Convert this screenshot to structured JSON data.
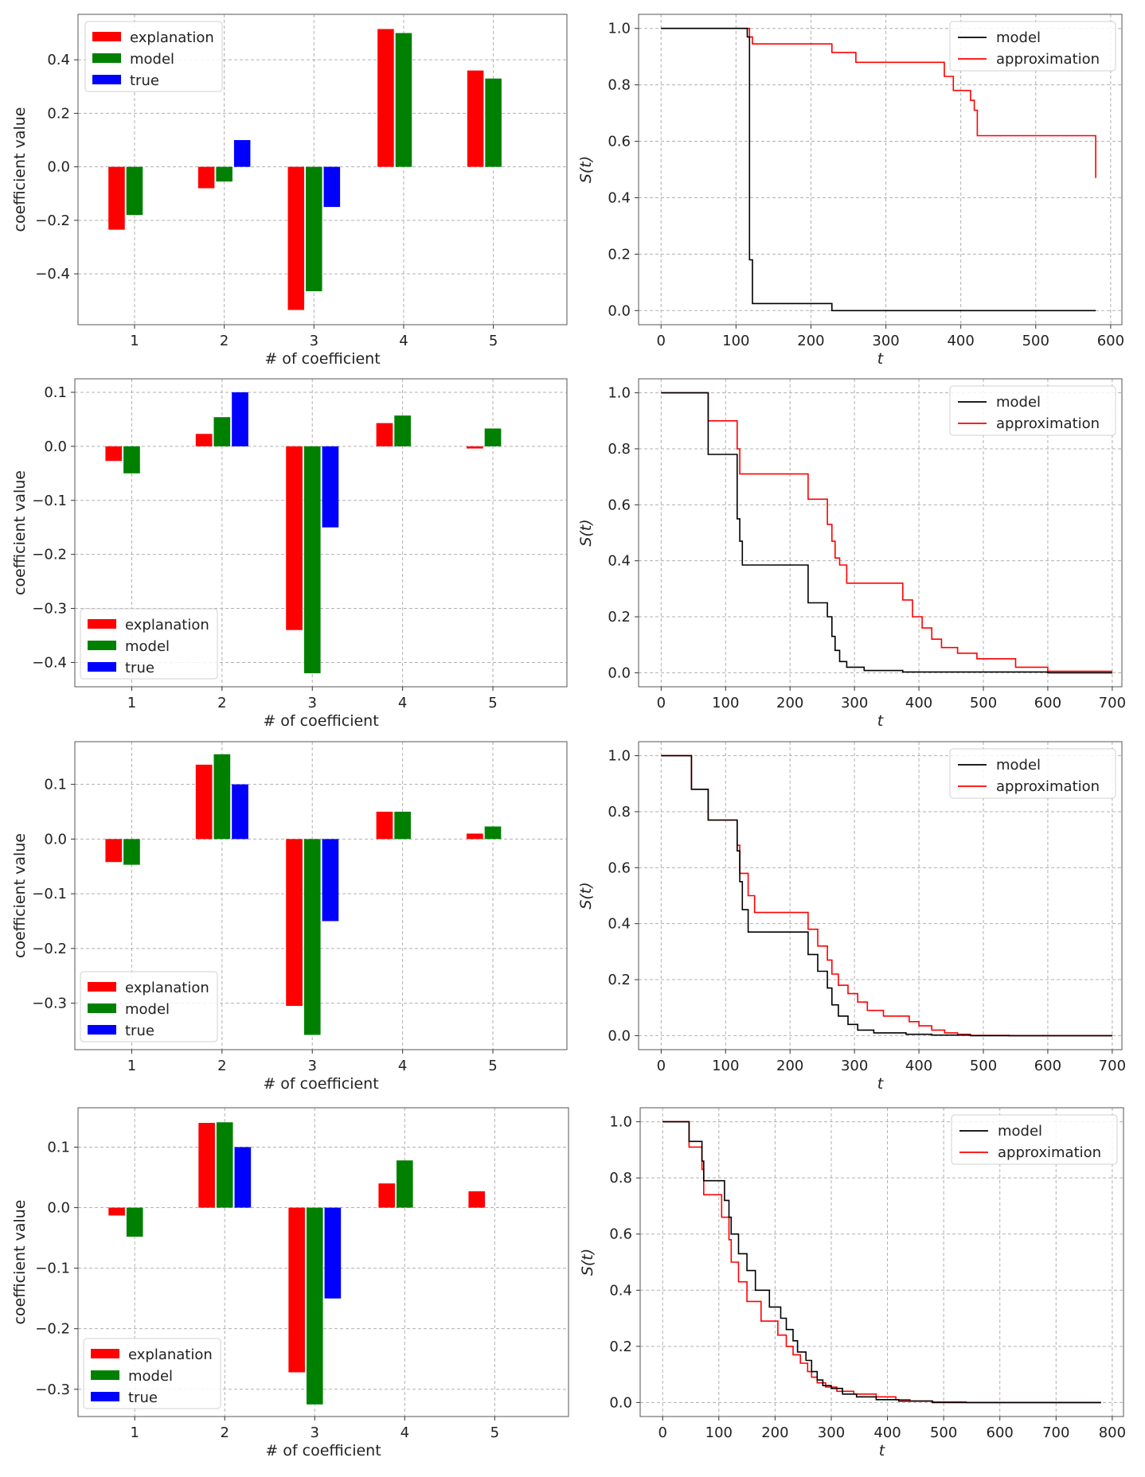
{
  "colors": {
    "explanation": "#ff0000",
    "model_bar": "#008000",
    "true": "#0000ff",
    "model_line": "#000000",
    "approximation": "#ff0000",
    "grid": "#b0b0b0"
  },
  "chart_data": [
    {
      "type": "bar",
      "row": 1,
      "xlabel": "# of coefficient",
      "ylabel": "coefficient value",
      "categories": [
        "1",
        "2",
        "3",
        "4",
        "5"
      ],
      "ylim": [
        -0.59,
        0.57
      ],
      "yticks": [
        -0.4,
        -0.2,
        0.0,
        0.2,
        0.4
      ],
      "yticklabels": [
        "−0.4",
        "−0.2",
        "0.0",
        "0.2",
        "0.4"
      ],
      "grid": true,
      "legend_position": "upper-left",
      "series": [
        {
          "name": "explanation",
          "values": [
            -0.235,
            -0.08,
            -0.535,
            0.515,
            0.36
          ]
        },
        {
          "name": "model",
          "values": [
            -0.18,
            -0.055,
            -0.465,
            0.5,
            0.33
          ]
        },
        {
          "name": "true",
          "values": [
            0,
            0.1,
            -0.15,
            0,
            0
          ]
        }
      ]
    },
    {
      "type": "line",
      "row": 1,
      "xlabel": "t",
      "ylabel": "S(t)",
      "xlim": [
        -30,
        615
      ],
      "ylim": [
        -0.05,
        1.05
      ],
      "xticks": [
        0,
        100,
        200,
        300,
        400,
        500,
        600
      ],
      "yticks": [
        0.0,
        0.2,
        0.4,
        0.6,
        0.8,
        1.0
      ],
      "grid": true,
      "legend_position": "upper-right",
      "series": [
        {
          "name": "model",
          "x": [
            0,
            115,
            115,
            118,
            118,
            122,
            122,
            228,
            228,
            580
          ],
          "y": [
            1.0,
            1.0,
            0.97,
            0.97,
            0.18,
            0.18,
            0.025,
            0.025,
            0.0,
            0.0
          ]
        },
        {
          "name": "approximation",
          "x": [
            0,
            118,
            118,
            122,
            122,
            228,
            228,
            260,
            260,
            378,
            378,
            390,
            390,
            413,
            413,
            418,
            418,
            422,
            422,
            580,
            580
          ],
          "y": [
            1.0,
            1.0,
            0.97,
            0.97,
            0.945,
            0.945,
            0.915,
            0.915,
            0.88,
            0.88,
            0.83,
            0.83,
            0.78,
            0.78,
            0.745,
            0.745,
            0.71,
            0.71,
            0.62,
            0.62,
            0.47
          ]
        }
      ]
    },
    {
      "type": "bar",
      "row": 2,
      "xlabel": "# of coefficient",
      "ylabel": "coefficient value",
      "categories": [
        "1",
        "2",
        "3",
        "4",
        "5"
      ],
      "ylim": [
        -0.445,
        0.125
      ],
      "yticks": [
        -0.4,
        -0.3,
        -0.2,
        -0.1,
        0.0,
        0.1
      ],
      "yticklabels": [
        "−0.4",
        "−0.3",
        "−0.2",
        "−0.1",
        "0.0",
        "0.1"
      ],
      "grid": true,
      "legend_position": "lower-left",
      "series": [
        {
          "name": "explanation",
          "values": [
            -0.027,
            0.023,
            -0.34,
            0.043,
            -0.004
          ]
        },
        {
          "name": "model",
          "values": [
            -0.05,
            0.054,
            -0.42,
            0.057,
            0.033
          ]
        },
        {
          "name": "true",
          "values": [
            0,
            0.1,
            -0.15,
            0,
            0
          ]
        }
      ]
    },
    {
      "type": "line",
      "row": 2,
      "xlabel": "t",
      "ylabel": "S(t)",
      "xlim": [
        -35,
        715
      ],
      "ylim": [
        -0.05,
        1.05
      ],
      "xticks": [
        0,
        100,
        200,
        300,
        400,
        500,
        600,
        700
      ],
      "yticks": [
        0.0,
        0.2,
        0.4,
        0.6,
        0.8,
        1.0
      ],
      "grid": true,
      "legend_position": "upper-right",
      "series": [
        {
          "name": "model",
          "x": [
            0,
            73,
            73,
            118,
            118,
            122,
            122,
            126,
            126,
            228,
            228,
            258,
            258,
            265,
            265,
            270,
            270,
            277,
            277,
            288,
            288,
            315,
            315,
            375,
            375,
            600,
            600,
            700
          ],
          "y": [
            1.0,
            1.0,
            0.78,
            0.78,
            0.55,
            0.55,
            0.47,
            0.47,
            0.385,
            0.385,
            0.25,
            0.25,
            0.2,
            0.2,
            0.13,
            0.13,
            0.08,
            0.08,
            0.04,
            0.04,
            0.02,
            0.02,
            0.008,
            0.008,
            0.003,
            0.003,
            0.0,
            0.0
          ]
        },
        {
          "name": "approximation",
          "x": [
            0,
            73,
            73,
            118,
            118,
            122,
            122,
            228,
            228,
            258,
            258,
            265,
            265,
            270,
            270,
            277,
            277,
            288,
            288,
            315,
            315,
            375,
            375,
            390,
            390,
            405,
            405,
            420,
            420,
            435,
            435,
            460,
            460,
            490,
            490,
            550,
            550,
            600,
            600,
            700
          ],
          "y": [
            1.0,
            1.0,
            0.9,
            0.9,
            0.8,
            0.8,
            0.71,
            0.71,
            0.62,
            0.62,
            0.53,
            0.53,
            0.47,
            0.47,
            0.41,
            0.41,
            0.385,
            0.385,
            0.32,
            0.32,
            0.32,
            0.32,
            0.26,
            0.26,
            0.2,
            0.2,
            0.16,
            0.16,
            0.12,
            0.12,
            0.09,
            0.09,
            0.07,
            0.07,
            0.05,
            0.05,
            0.02,
            0.02,
            0.005,
            0.005
          ]
        }
      ]
    },
    {
      "type": "bar",
      "row": 3,
      "xlabel": "# of coefficient",
      "ylabel": "coefficient value",
      "categories": [
        "1",
        "2",
        "3",
        "4",
        "5"
      ],
      "ylim": [
        -0.385,
        0.178
      ],
      "yticks": [
        -0.3,
        -0.2,
        -0.1,
        0.0,
        0.1
      ],
      "yticklabels": [
        "−0.3",
        "−0.2",
        "−0.1",
        "0.0",
        "0.1"
      ],
      "grid": true,
      "legend_position": "lower-left",
      "series": [
        {
          "name": "explanation",
          "values": [
            -0.042,
            0.136,
            -0.305,
            0.05,
            0.01
          ]
        },
        {
          "name": "model",
          "values": [
            -0.047,
            0.155,
            -0.358,
            0.05,
            0.023
          ]
        },
        {
          "name": "true",
          "values": [
            0,
            0.1,
            -0.15,
            0,
            0
          ]
        }
      ]
    },
    {
      "type": "line",
      "row": 3,
      "xlabel": "t",
      "ylabel": "S(t)",
      "xlim": [
        -35,
        715
      ],
      "ylim": [
        -0.05,
        1.05
      ],
      "xticks": [
        0,
        100,
        200,
        300,
        400,
        500,
        600,
        700
      ],
      "yticks": [
        0.0,
        0.2,
        0.4,
        0.6,
        0.8,
        1.0
      ],
      "grid": true,
      "legend_position": "upper-right",
      "series": [
        {
          "name": "model",
          "x": [
            0,
            47,
            47,
            73,
            73,
            118,
            118,
            122,
            122,
            126,
            126,
            135,
            135,
            145,
            145,
            228,
            228,
            243,
            243,
            258,
            258,
            265,
            265,
            275,
            275,
            290,
            290,
            305,
            305,
            330,
            330,
            380,
            380,
            420,
            420,
            480,
            480,
            700
          ],
          "y": [
            1.0,
            1.0,
            0.88,
            0.88,
            0.77,
            0.77,
            0.66,
            0.66,
            0.55,
            0.55,
            0.45,
            0.45,
            0.37,
            0.37,
            0.37,
            0.37,
            0.29,
            0.29,
            0.23,
            0.23,
            0.17,
            0.17,
            0.11,
            0.11,
            0.07,
            0.07,
            0.04,
            0.04,
            0.02,
            0.02,
            0.01,
            0.01,
            0.005,
            0.005,
            0.002,
            0.002,
            0.0,
            0.0
          ]
        },
        {
          "name": "approximation",
          "x": [
            0,
            47,
            47,
            73,
            73,
            118,
            118,
            122,
            122,
            135,
            135,
            145,
            145,
            228,
            228,
            243,
            243,
            258,
            258,
            265,
            265,
            275,
            275,
            290,
            290,
            305,
            305,
            320,
            320,
            345,
            345,
            385,
            385,
            400,
            400,
            420,
            420,
            440,
            440,
            460,
            460,
            480,
            480,
            540,
            540,
            700
          ],
          "y": [
            1.0,
            1.0,
            0.88,
            0.88,
            0.77,
            0.77,
            0.68,
            0.68,
            0.58,
            0.58,
            0.5,
            0.5,
            0.44,
            0.44,
            0.38,
            0.38,
            0.32,
            0.32,
            0.27,
            0.27,
            0.22,
            0.22,
            0.18,
            0.18,
            0.15,
            0.15,
            0.12,
            0.12,
            0.09,
            0.09,
            0.07,
            0.07,
            0.05,
            0.05,
            0.035,
            0.035,
            0.02,
            0.02,
            0.01,
            0.01,
            0.005,
            0.005,
            0.001,
            0.001,
            0.0,
            0.0
          ]
        }
      ]
    },
    {
      "type": "bar",
      "row": 4,
      "xlabel": "# of coefficient",
      "ylabel": "coefficient value",
      "categories": [
        "1",
        "2",
        "3",
        "4",
        "5"
      ],
      "ylim": [
        -0.345,
        0.165
      ],
      "yticks": [
        -0.3,
        -0.2,
        -0.1,
        0.0,
        0.1
      ],
      "yticklabels": [
        "−0.3",
        "−0.2",
        "−0.1",
        "0.0",
        "0.1"
      ],
      "grid": true,
      "legend_position": "lower-left",
      "series": [
        {
          "name": "explanation",
          "values": [
            -0.013,
            0.14,
            -0.272,
            0.04,
            0.027
          ]
        },
        {
          "name": "model",
          "values": [
            -0.048,
            0.141,
            -0.325,
            0.078,
            0.0
          ]
        },
        {
          "name": "true",
          "values": [
            0,
            0.1,
            -0.15,
            0,
            0
          ]
        }
      ]
    },
    {
      "type": "line",
      "row": 4,
      "xlabel": "t",
      "ylabel": "S(t)",
      "xlim": [
        -40,
        820
      ],
      "ylim": [
        -0.05,
        1.05
      ],
      "xticks": [
        0,
        100,
        200,
        300,
        400,
        500,
        600,
        700,
        800
      ],
      "yticks": [
        0.0,
        0.2,
        0.4,
        0.6,
        0.8,
        1.0
      ],
      "grid": true,
      "legend_position": "upper-right",
      "series": [
        {
          "name": "model",
          "x": [
            0,
            47,
            47,
            70,
            70,
            73,
            73,
            110,
            110,
            118,
            118,
            122,
            122,
            135,
            135,
            150,
            150,
            165,
            165,
            190,
            190,
            210,
            210,
            220,
            220,
            232,
            232,
            240,
            240,
            255,
            255,
            265,
            265,
            275,
            275,
            285,
            285,
            300,
            300,
            320,
            320,
            345,
            345,
            380,
            380,
            420,
            420,
            480,
            480,
            780
          ],
          "y": [
            1.0,
            1.0,
            0.93,
            0.93,
            0.86,
            0.86,
            0.79,
            0.79,
            0.72,
            0.72,
            0.66,
            0.66,
            0.6,
            0.6,
            0.53,
            0.53,
            0.47,
            0.47,
            0.4,
            0.4,
            0.34,
            0.34,
            0.3,
            0.3,
            0.26,
            0.26,
            0.22,
            0.22,
            0.18,
            0.18,
            0.15,
            0.15,
            0.11,
            0.11,
            0.08,
            0.08,
            0.06,
            0.06,
            0.05,
            0.05,
            0.03,
            0.03,
            0.02,
            0.02,
            0.01,
            0.01,
            0.005,
            0.005,
            0.0,
            0.0
          ]
        },
        {
          "name": "approximation",
          "x": [
            0,
            47,
            47,
            70,
            70,
            73,
            73,
            105,
            105,
            118,
            118,
            122,
            122,
            135,
            135,
            150,
            150,
            175,
            175,
            205,
            205,
            220,
            220,
            232,
            232,
            245,
            245,
            258,
            258,
            265,
            265,
            275,
            275,
            290,
            290,
            310,
            310,
            340,
            340,
            380,
            380,
            415,
            415,
            440,
            440,
            480,
            480,
            540,
            540,
            780
          ],
          "y": [
            1.0,
            1.0,
            0.91,
            0.91,
            0.83,
            0.83,
            0.74,
            0.74,
            0.66,
            0.66,
            0.58,
            0.58,
            0.5,
            0.5,
            0.43,
            0.43,
            0.36,
            0.36,
            0.29,
            0.29,
            0.24,
            0.24,
            0.2,
            0.2,
            0.17,
            0.17,
            0.14,
            0.14,
            0.11,
            0.11,
            0.09,
            0.09,
            0.07,
            0.07,
            0.055,
            0.055,
            0.04,
            0.04,
            0.03,
            0.03,
            0.02,
            0.02,
            0.01,
            0.01,
            0.005,
            0.005,
            0.002,
            0.002,
            0.0,
            0.0
          ]
        }
      ]
    }
  ]
}
